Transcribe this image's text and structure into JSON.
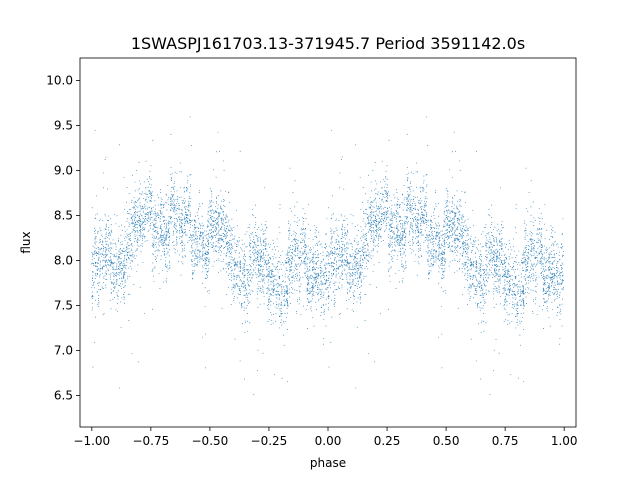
{
  "chart_data": {
    "type": "scatter",
    "title": "1SWASPJ161703.13-371945.7 Period 3591142.0s",
    "xlabel": "phase",
    "ylabel": "flux",
    "xlim": [
      -1.05,
      1.05
    ],
    "ylim": [
      6.15,
      10.25
    ],
    "xticks": [
      -1.0,
      -0.75,
      -0.5,
      -0.25,
      0.0,
      0.25,
      0.5,
      0.75,
      1.0
    ],
    "xtick_labels": [
      "−1.00",
      "−0.75",
      "−0.50",
      "−0.25",
      "0.00",
      "0.25",
      "0.50",
      "0.75",
      "1.00"
    ],
    "yticks": [
      6.5,
      7.0,
      7.5,
      8.0,
      8.5,
      9.0,
      9.5,
      10.0
    ],
    "ytick_labels": [
      "6.5",
      "7.0",
      "7.5",
      "8.0",
      "8.5",
      "9.0",
      "9.5",
      "10.0"
    ],
    "grid": false,
    "marker_color": "#1f77b4",
    "profile": {
      "phase": [
        0.0,
        0.05,
        0.1,
        0.15,
        0.2,
        0.25,
        0.3,
        0.35,
        0.4,
        0.45,
        0.5,
        0.55,
        0.6,
        0.65,
        0.7,
        0.75,
        0.8,
        0.85,
        0.9,
        0.95,
        1.0
      ],
      "flux": [
        7.85,
        7.95,
        8.0,
        8.1,
        8.3,
        8.45,
        8.5,
        8.35,
        8.3,
        8.3,
        8.25,
        8.3,
        8.1,
        7.95,
        7.95,
        7.95,
        7.85,
        7.9,
        8.05,
        8.05,
        7.85
      ]
    },
    "points_per_cycle": 3600,
    "point_radius": 0.45
  }
}
